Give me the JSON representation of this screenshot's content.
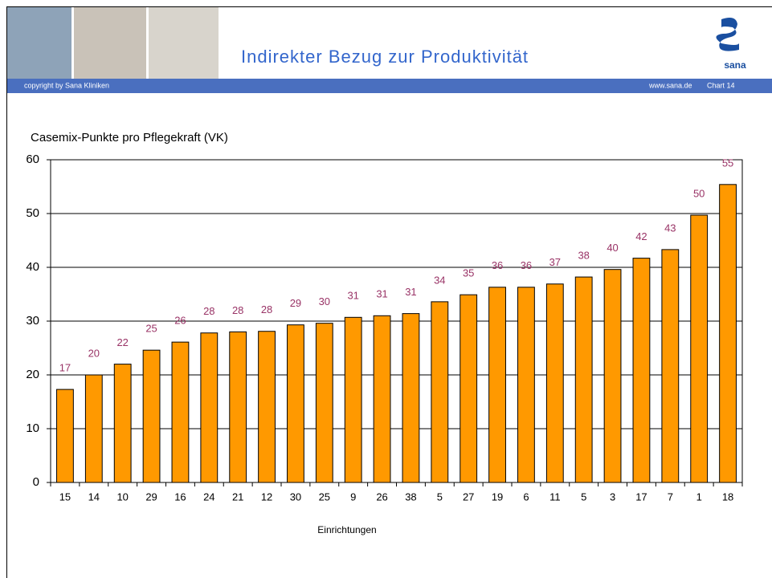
{
  "header": {
    "title": "Indirekter Bezug zur Produktivität",
    "copyright": "copyright by Sana Kliniken",
    "website": "www.sana.de",
    "chart_number": "Chart 14",
    "logo_text": "sana"
  },
  "chart_data": {
    "type": "bar",
    "title": "Casemix-Punkte pro Pflegekraft (VK)",
    "x_label": "Einrichtungen",
    "categories": [
      "15",
      "14",
      "10",
      "29",
      "16",
      "24",
      "21",
      "12",
      "30",
      "25",
      "9",
      "26",
      "38",
      "5",
      "27",
      "19",
      "6",
      "11",
      "5",
      "3",
      "17",
      "7",
      "1",
      "18"
    ],
    "values": [
      17.3,
      20.0,
      22.0,
      24.6,
      26.1,
      27.8,
      28.0,
      28.1,
      29.3,
      29.6,
      30.7,
      31.0,
      31.4,
      33.6,
      34.9,
      36.3,
      36.3,
      36.9,
      38.2,
      39.6,
      41.7,
      43.3,
      49.7,
      55.4
    ],
    "value_labels": [
      "17",
      "20",
      "22",
      "25",
      "26",
      "28",
      "28",
      "28",
      "29",
      "30",
      "31",
      "31",
      "31",
      "34",
      "35",
      "36",
      "36",
      "37",
      "38",
      "40",
      "42",
      "43",
      "50",
      "55"
    ],
    "color": "#ff9900",
    "label_color": "#993366",
    "ylim": [
      0,
      60
    ],
    "yticks": [
      0,
      10,
      20,
      30,
      40,
      50,
      60
    ],
    "grid": true
  }
}
